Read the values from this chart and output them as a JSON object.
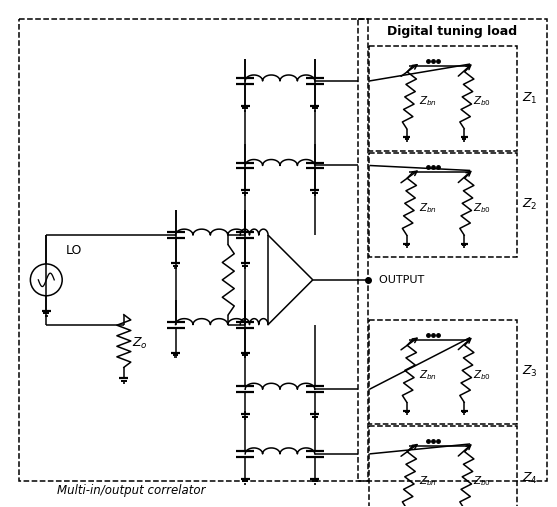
{
  "bg_color": "#ffffff",
  "fig_width": 5.57,
  "fig_height": 5.07,
  "dpi": 100,
  "digital_label": "Digital tuning load",
  "correlator_label": "Multi-in/output correlator",
  "lo_label": "LO",
  "output_label": "OUTPUT",
  "z_labels": [
    "Z_1",
    "Z_2",
    "Z_3",
    "Z_4"
  ]
}
